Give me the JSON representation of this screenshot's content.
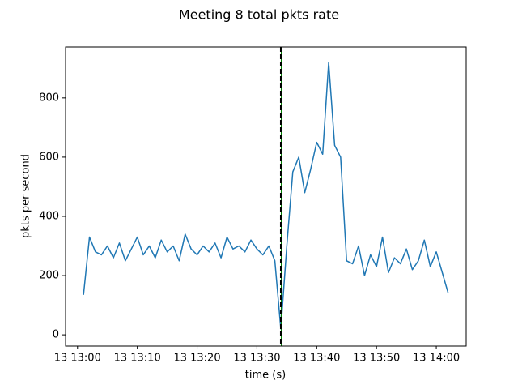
{
  "chart_data": {
    "type": "line",
    "title": "Meeting 8 total pkts rate",
    "x_label": "time (s)",
    "y_label": "pkts per second",
    "x": [
      "13 13:01",
      "13 13:02",
      "13 13:03",
      "13 13:04",
      "13 13:05",
      "13 13:06",
      "13 13:07",
      "13 13:08",
      "13 13:09",
      "13 13:10",
      "13 13:11",
      "13 13:12",
      "13 13:13",
      "13 13:14",
      "13 13:15",
      "13 13:16",
      "13 13:17",
      "13 13:18",
      "13 13:19",
      "13 13:20",
      "13 13:21",
      "13 13:22",
      "13 13:23",
      "13 13:24",
      "13 13:25",
      "13 13:26",
      "13 13:27",
      "13 13:28",
      "13 13:29",
      "13 13:30",
      "13 13:31",
      "13 13:32",
      "13 13:33",
      "13 13:34",
      "13 13:35",
      "13 13:36",
      "13 13:37",
      "13 13:38",
      "13 13:39",
      "13 13:40",
      "13 13:41",
      "13 13:42",
      "13 13:43",
      "13 13:44",
      "13 13:45",
      "13 13:46",
      "13 13:47",
      "13 13:48",
      "13 13:49",
      "13 13:50",
      "13 13:51",
      "13 13:52",
      "13 13:53",
      "13 13:54",
      "13 13:55",
      "13 13:56",
      "13 13:57",
      "13 13:58",
      "13 13:59",
      "13 14:00",
      "13 14:01",
      "13 14:02"
    ],
    "series": [
      {
        "color": "#1f77b4",
        "values": [
          135,
          330,
          280,
          270,
          300,
          260,
          310,
          250,
          290,
          330,
          270,
          300,
          260,
          320,
          280,
          300,
          250,
          340,
          290,
          270,
          300,
          280,
          310,
          260,
          330,
          290,
          300,
          280,
          320,
          290,
          270,
          300,
          250,
          20,
          300,
          550,
          600,
          480,
          560,
          650,
          610,
          920,
          640,
          600,
          250,
          240,
          300,
          200,
          270,
          230,
          330,
          210,
          260,
          240,
          290,
          220,
          250,
          320,
          230,
          280,
          210,
          140
        ]
      }
    ],
    "vlines": [
      {
        "x": "13 13:34",
        "color": "#008000",
        "style": "solid"
      },
      {
        "x": "13 13:34",
        "color": "#000000",
        "style": "dashed"
      }
    ],
    "xlim": [
      "13 12:58",
      "13 14:05"
    ],
    "xticks": [
      "13 13:00",
      "13 13:10",
      "13 13:20",
      "13 13:30",
      "13 13:40",
      "13 13:50",
      "13 14:00"
    ],
    "ylim": [
      -38,
      972
    ],
    "yticks": [
      0,
      200,
      400,
      600,
      800
    ]
  }
}
